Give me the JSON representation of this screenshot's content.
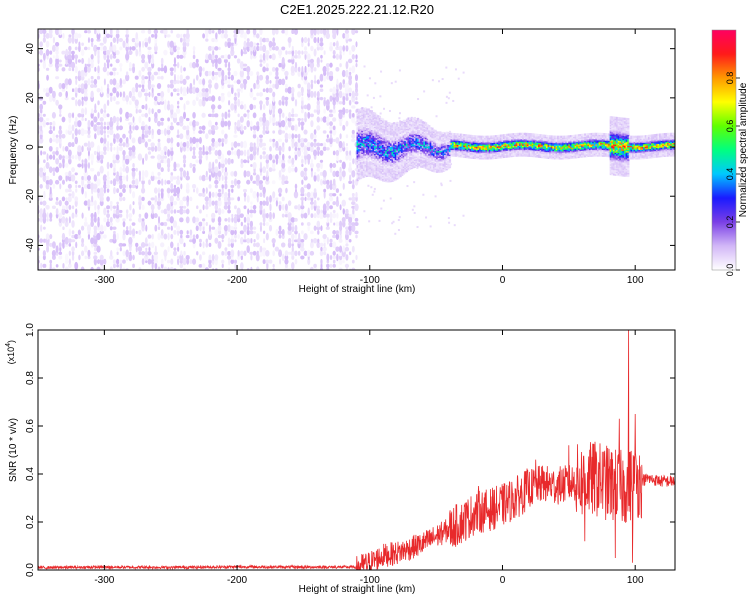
{
  "figure": {
    "title": "C2E1.2025.222.21.12.R20"
  },
  "chart_data": [
    {
      "type": "heatmap",
      "title": "C2E1.2025.222.21.12.R20",
      "xlabel": "Height of straight line (km)",
      "ylabel": "Frequency (Hz)",
      "xlim": [
        -350,
        130
      ],
      "ylim": [
        -50,
        48
      ],
      "x_ticks": [
        -300,
        -200,
        -100,
        0,
        100
      ],
      "y_ticks": [
        -40,
        -20,
        0,
        20,
        40
      ],
      "colorbar": {
        "label": "Normalized spectral amplitude",
        "range": [
          0.0,
          1.0
        ],
        "ticks": [
          "0.0",
          "0.2",
          "0.4",
          "0.6",
          "0.8"
        ],
        "colormap": [
          "#ffffff",
          "#d2b7f7",
          "#7a3fe6",
          "#1a1aff",
          "#00c8ff",
          "#00ff80",
          "#60ff00",
          "#ffff00",
          "#ff9900",
          "#ff1a1a",
          "#ff0060"
        ]
      },
      "regions": [
        {
          "x": [
            -350,
            -110
          ],
          "pattern": "broadband noise",
          "amplitude": [
            0.0,
            0.2
          ]
        },
        {
          "x": [
            -110,
            -40
          ],
          "freq_center": 0,
          "freq_halfwidth": 8,
          "amplitude": [
            0.1,
            0.5
          ]
        },
        {
          "x": [
            -40,
            130
          ],
          "freq_center": 0.5,
          "freq_halfwidth": 2.5,
          "amplitude": [
            0.4,
            0.95
          ]
        }
      ],
      "grid": false
    },
    {
      "type": "line",
      "xlabel": "Height of straight line (km)",
      "ylabel": "SNR (10 * v/v)",
      "y_multiplier": "(x10^4)",
      "xlim": [
        -350,
        130
      ],
      "ylim": [
        0.0,
        1.0
      ],
      "x_ticks": [
        -300,
        -200,
        -100,
        0,
        100
      ],
      "y_ticks": [
        "0.0",
        "0.2",
        "0.4",
        "0.6",
        "0.8",
        "1.0"
      ],
      "color": "#e8292b",
      "series": [
        {
          "x": [
            -350,
            -300,
            -250,
            -200,
            -150,
            -110,
            -100,
            -90,
            -80,
            -70,
            -60,
            -50,
            -40,
            -30,
            -20,
            -10,
            0,
            10,
            20,
            30,
            40,
            50,
            60,
            70,
            80,
            90,
            100,
            110,
            120,
            130
          ],
          "values": [
            0.01,
            0.012,
            0.011,
            0.013,
            0.012,
            0.012,
            0.03,
            0.06,
            0.07,
            0.09,
            0.11,
            0.14,
            0.17,
            0.2,
            0.24,
            0.25,
            0.27,
            0.3,
            0.34,
            0.36,
            0.35,
            0.36,
            0.37,
            0.38,
            0.36,
            0.34,
            0.37,
            0.38,
            0.37,
            0.37
          ],
          "peaks": [
            {
              "x": -28,
              "value": 0.28
            },
            {
              "x": -18,
              "value": 0.35
            },
            {
              "x": -12,
              "value": 0.25
            },
            {
              "x": 25,
              "value": 0.46
            },
            {
              "x": 50,
              "value": 0.52
            },
            {
              "x": 62,
              "value": 0.6
            },
            {
              "x": 88,
              "value": 0.63
            },
            {
              "x": 95,
              "value": 1.0
            },
            {
              "x": 100,
              "value": 0.65
            }
          ],
          "dips": [
            {
              "x": 62,
              "value": 0.12
            },
            {
              "x": 85,
              "value": 0.05
            },
            {
              "x": 98,
              "value": 0.03
            }
          ]
        }
      ],
      "grid": false
    }
  ]
}
